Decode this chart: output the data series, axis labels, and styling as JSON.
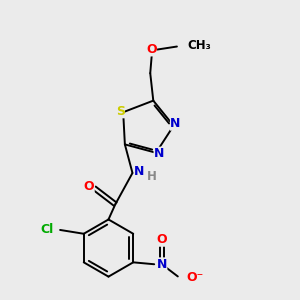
{
  "background_color": "#ebebeb",
  "bond_color": "#000000",
  "atom_colors": {
    "O": "#ff0000",
    "N": "#0000cc",
    "S": "#cccc00",
    "Cl": "#00aa00",
    "C": "#000000",
    "H": "#888888"
  },
  "figsize": [
    3.0,
    3.0
  ],
  "dpi": 100
}
